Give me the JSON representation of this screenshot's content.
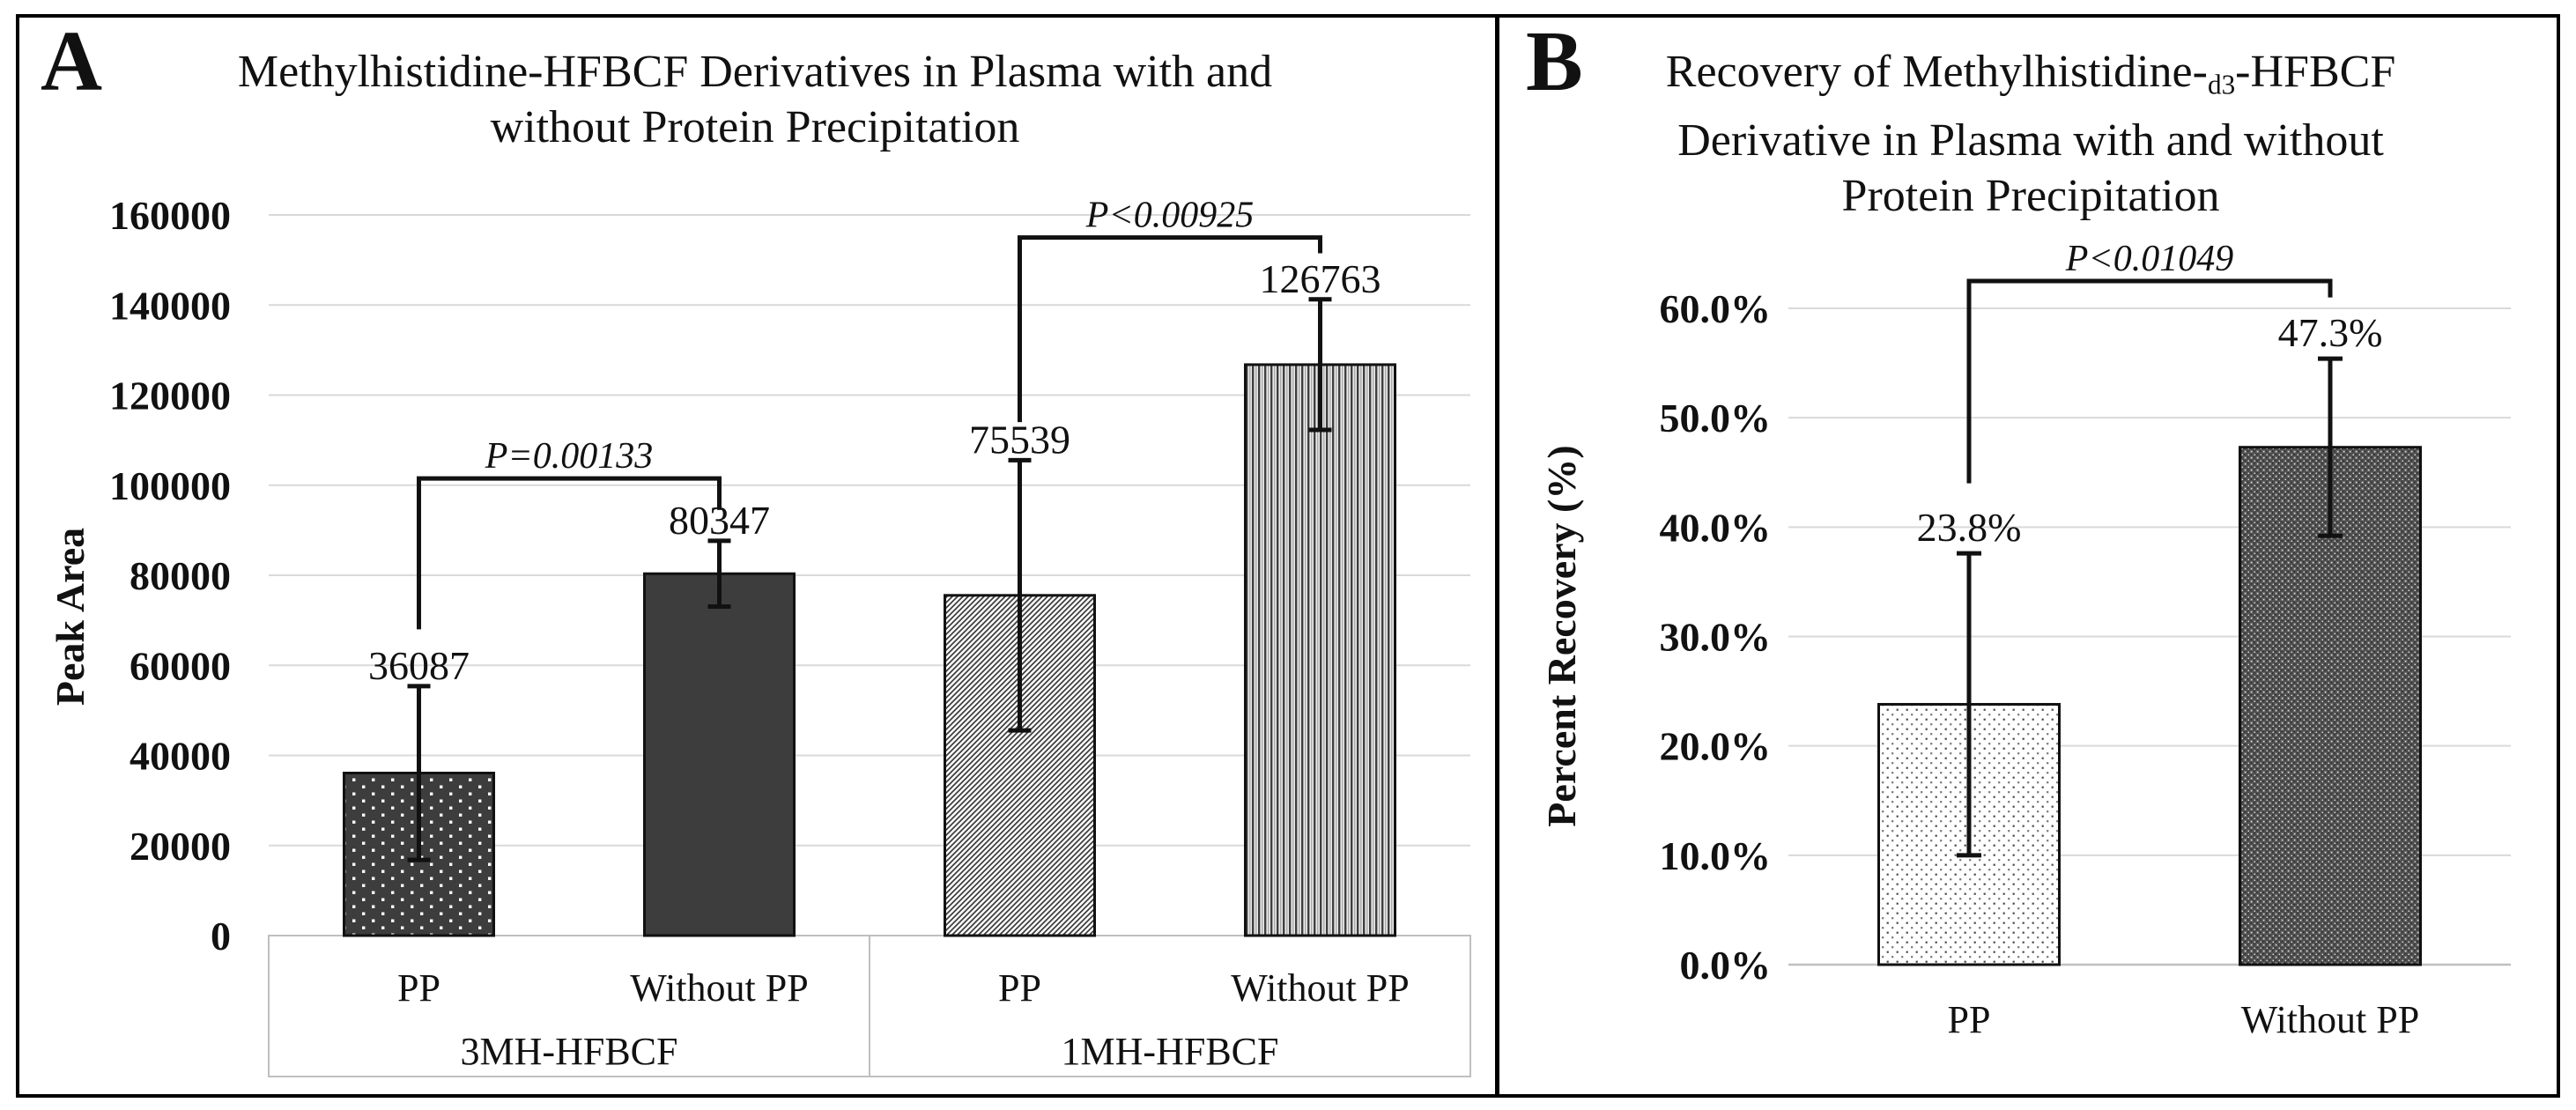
{
  "figure": {
    "background": "#ffffff",
    "border_color": "#000000",
    "gridline_color": "#d9d9d9",
    "table_line_color": "#bfbfbf",
    "ink_color": "#111111",
    "bar_dark_color": "#3d3d3d"
  },
  "panels": {
    "a": {
      "letter": "A",
      "title_line1": "Methylhistidine-HFBCF Derivatives in Plasma with and",
      "title_line2": "without Protein Precipitation"
    },
    "b": {
      "letter": "B",
      "title_line1_pre": "Recovery of Methylhistidine-",
      "title_line1_sub": "d3",
      "title_line1_post": "-HFBCF",
      "title_line2": "Derivative in Plasma with and without",
      "title_line3": "Protein Precipitation"
    }
  },
  "chart_data": [
    {
      "id": "A",
      "type": "bar",
      "title": "Methylhistidine-HFBCF Derivatives in Plasma with and without Protein Precipitation",
      "xlabel": "",
      "ylabel": "Peak Area",
      "ylim": [
        0,
        160000
      ],
      "ytick_step": 20000,
      "ytick_labels": [
        "0",
        "20000",
        "40000",
        "60000",
        "80000",
        "100000",
        "120000",
        "140000",
        "160000"
      ],
      "grid": true,
      "legend": "none",
      "groups": [
        "3MH-HFBCF",
        "1MH-HFBCF"
      ],
      "categories": [
        "PP",
        "Without PP",
        "PP",
        "Without PP"
      ],
      "values": [
        36087,
        80347,
        75539,
        126763
      ],
      "value_labels": [
        "36087",
        "80347",
        "75539",
        "126763"
      ],
      "error_plus": [
        19300,
        7300,
        30000,
        14500
      ],
      "error_minus": [
        19300,
        7300,
        30000,
        14500
      ],
      "bar_patterns": [
        "dark-dotted",
        "dark-solid",
        "diagonal-stripes",
        "vertical-stripes"
      ],
      "significance": [
        {
          "label": "P=0.00133",
          "between": [
            0,
            1
          ],
          "top": 101500,
          "left_drop": 68000,
          "right_drop": 94500
        },
        {
          "label": "P<0.00925",
          "between": [
            2,
            3
          ],
          "top": 155000,
          "left_drop": 114000,
          "right_drop": 151500
        }
      ]
    },
    {
      "id": "B",
      "type": "bar",
      "title": "Recovery of Methylhistidine-d3-HFBCF Derivative in Plasma with and without Protein Precipitation",
      "xlabel": "",
      "ylabel": "Percent Recovery (%)",
      "ylim": [
        0,
        60
      ],
      "ytick_step": 10,
      "ytick_labels": [
        "0.0%",
        "10.0%",
        "20.0%",
        "30.0%",
        "40.0%",
        "50.0%",
        "60.0%"
      ],
      "grid": true,
      "legend": "none",
      "groups": null,
      "categories": [
        "PP",
        "Without PP"
      ],
      "values": [
        23.8,
        47.3
      ],
      "value_labels": [
        "23.8%",
        "47.3%"
      ],
      "error_plus": [
        13.8,
        8.1
      ],
      "error_minus": [
        13.8,
        8.1
      ],
      "bar_patterns": [
        "light-dotted",
        "dark-weave"
      ],
      "significance": [
        {
          "label": "P<0.01049",
          "between": [
            0,
            1
          ],
          "top": 62.5,
          "left_drop": 44.0,
          "right_drop": 61.0
        }
      ]
    }
  ]
}
